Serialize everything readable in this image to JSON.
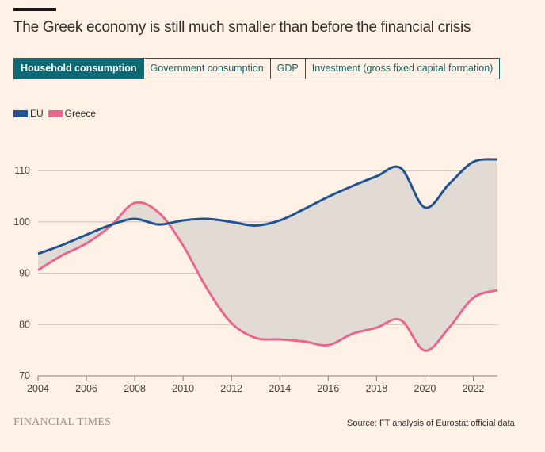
{
  "header": {
    "title": "The Greek economy is still much smaller than before the financial crisis"
  },
  "tabs": [
    {
      "label": "Household consumption",
      "active": true
    },
    {
      "label": "Government consumption",
      "active": false
    },
    {
      "label": "GDP",
      "active": false
    },
    {
      "label": "Investment (gross fixed capital formation)",
      "active": false
    }
  ],
  "legend": [
    {
      "label": "EU",
      "color": "#1f5392"
    },
    {
      "label": "Greece",
      "color": "#e9678f"
    }
  ],
  "footer": {
    "logo": "FINANCIAL TIMES",
    "source": "Source: FT analysis of Eurostat official data"
  },
  "colors": {
    "eu": "#1f5392",
    "greece": "#e9678f",
    "gap_fill": "#e2dad4",
    "grid": "#c9bcb3",
    "accent": "#0d6973"
  },
  "chart_data": {
    "type": "line",
    "title": "The Greek economy is still much smaller than before the financial crisis",
    "xlabel": "",
    "ylabel": "",
    "x": [
      2004,
      2005,
      2006,
      2007,
      2008,
      2009,
      2010,
      2011,
      2012,
      2013,
      2014,
      2015,
      2016,
      2017,
      2018,
      2019,
      2020,
      2021,
      2022,
      2023
    ],
    "series": [
      {
        "name": "EU",
        "values": [
          93.8,
          95.5,
          97.5,
          99.4,
          100.6,
          99.5,
          100.3,
          100.6,
          100.0,
          99.3,
          100.3,
          102.5,
          104.9,
          107.0,
          108.9,
          110.5,
          102.8,
          107.4,
          111.7,
          112.2
        ]
      },
      {
        "name": "Greece",
        "values": [
          90.6,
          93.5,
          95.8,
          99.2,
          103.7,
          101.8,
          95.4,
          86.9,
          80.3,
          77.4,
          77.1,
          76.7,
          76.0,
          78.2,
          79.4,
          80.9,
          74.9,
          79.4,
          85.2,
          86.7
        ]
      }
    ],
    "xlim": [
      2004,
      2023
    ],
    "ylim": [
      70,
      115
    ],
    "yticks": [
      70,
      80,
      90,
      100,
      110
    ],
    "xticks": [
      2004,
      2006,
      2008,
      2010,
      2012,
      2014,
      2016,
      2018,
      2020,
      2022
    ],
    "grid": true,
    "legend_position": "top-left",
    "shaded_area": "between EU and Greece"
  }
}
